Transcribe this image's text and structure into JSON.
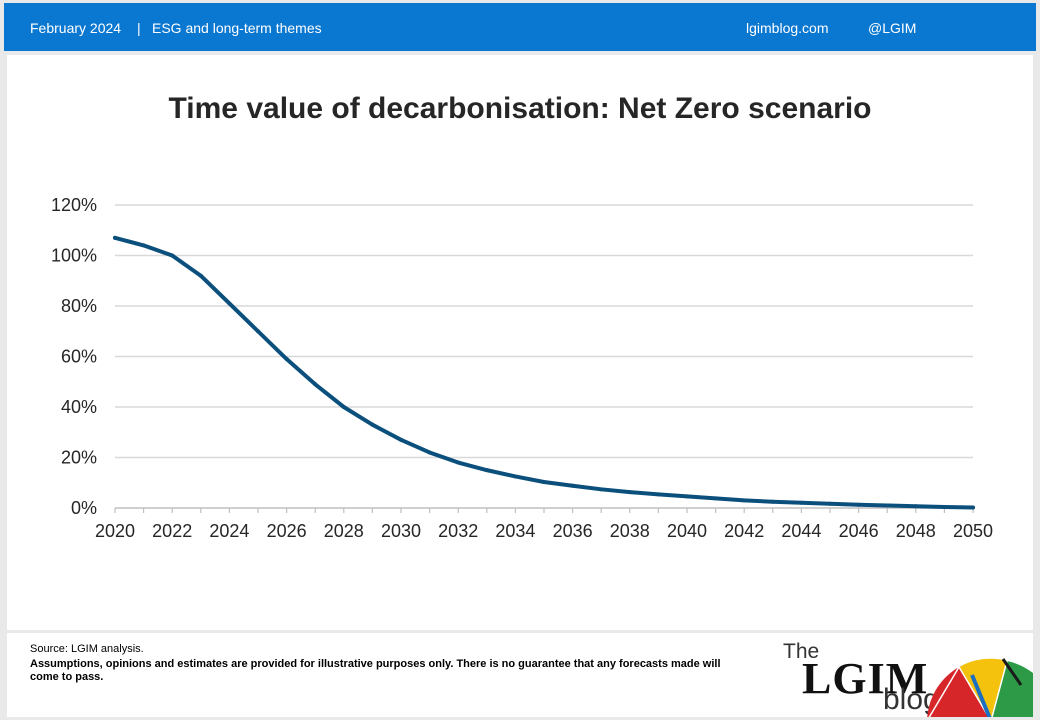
{
  "header": {
    "date": "February 2024",
    "separator": "|",
    "section": "ESG and long-term themes",
    "site": "lgimblog.com",
    "handle": "@LGIM",
    "bg_color": "#0a77d0"
  },
  "footer": {
    "source": "Source: LGIM analysis.",
    "disclaimer": "Assumptions, opinions and estimates are provided for illustrative purposes only. There is no guarantee that any forecasts made will come to pass.",
    "logo_the": "The",
    "logo_main": "LGIM",
    "logo_blog": "blog"
  },
  "chart_data": {
    "type": "line",
    "title": "Time value of decarbonisation: Net Zero scenario",
    "xlabel": "",
    "ylabel": "",
    "x": [
      2020,
      2021,
      2022,
      2023,
      2024,
      2025,
      2026,
      2027,
      2028,
      2029,
      2030,
      2031,
      2032,
      2033,
      2034,
      2035,
      2036,
      2037,
      2038,
      2039,
      2040,
      2041,
      2042,
      2043,
      2044,
      2045,
      2046,
      2047,
      2048,
      2049,
      2050
    ],
    "series": [
      {
        "color": "#0b4f7c",
        "values": [
          107,
          104,
          100,
          92,
          81,
          70,
          59,
          49,
          40,
          33,
          27,
          22,
          18,
          15,
          12.5,
          10.3,
          8.8,
          7.4,
          6.3,
          5.4,
          4.6,
          3.8,
          3.0,
          2.5,
          2.1,
          1.7,
          1.3,
          1.0,
          0.7,
          0.4,
          0.2
        ]
      }
    ],
    "x_ticks": [
      "2020",
      "2022",
      "2024",
      "2026",
      "2028",
      "2030",
      "2032",
      "2034",
      "2036",
      "2038",
      "2040",
      "2042",
      "2044",
      "2046",
      "2048",
      "2050"
    ],
    "y_ticks": [
      "0%",
      "20%",
      "40%",
      "60%",
      "80%",
      "100%",
      "120%"
    ],
    "ylim": [
      0,
      120
    ],
    "xlim": [
      2020,
      2050
    ],
    "grid": "horizontal",
    "legend": "none"
  }
}
